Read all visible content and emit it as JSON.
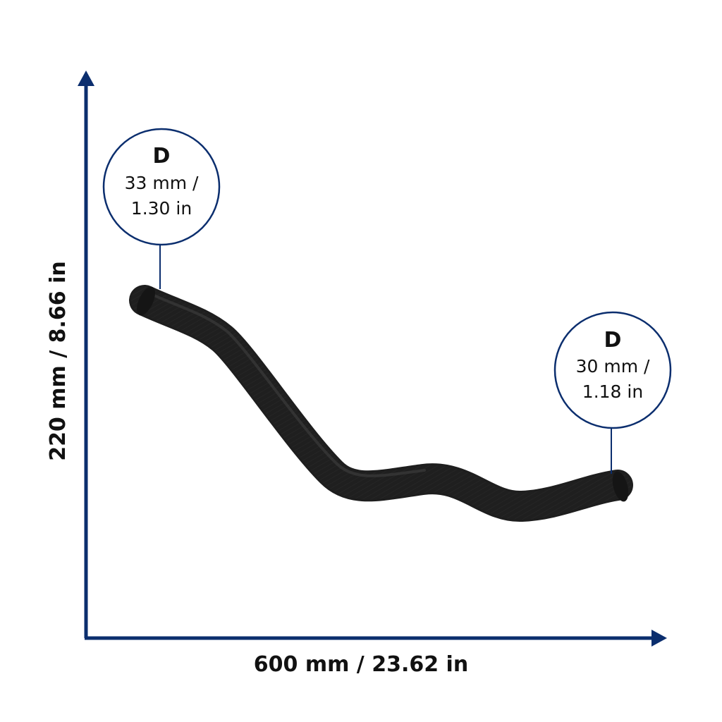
{
  "dimensions": {
    "width_label": "600 mm / 23.62 in",
    "height_label": "220 mm / 8.66 in"
  },
  "callouts": [
    {
      "title": "D",
      "line1": "33 mm /",
      "line2": "1.30 in"
    },
    {
      "title": "D",
      "line1": "30 mm /",
      "line2": "1.18 in"
    }
  ],
  "colors": {
    "axis": "#0b2e6e",
    "hose": "#1e1e1e",
    "text": "#111111"
  }
}
